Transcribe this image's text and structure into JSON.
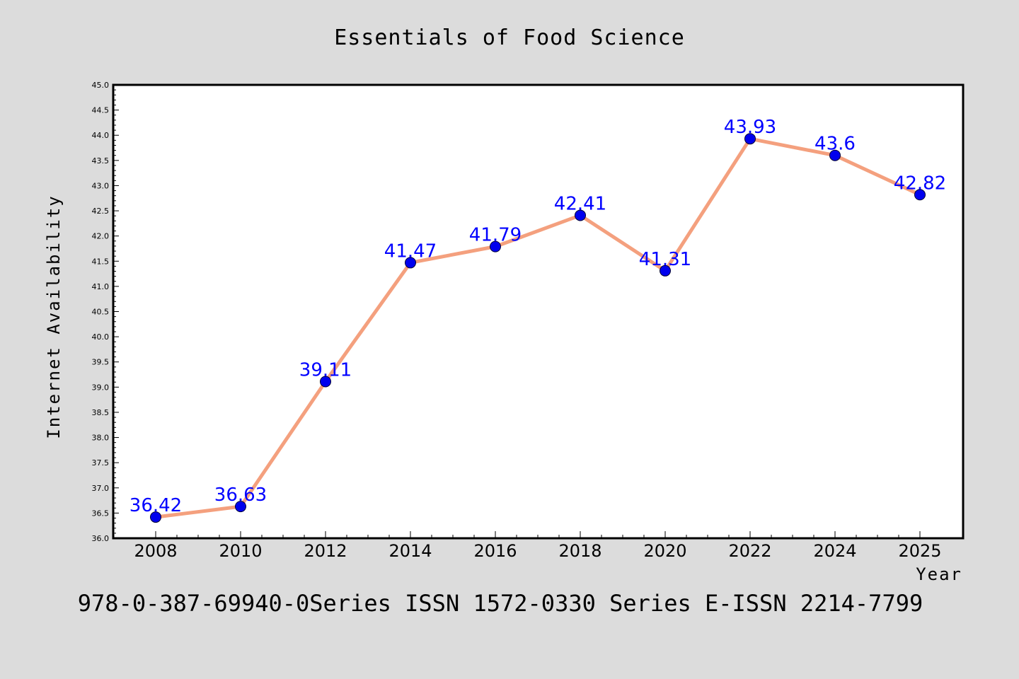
{
  "chart_data": {
    "type": "line",
    "title": "Essentials of Food Science",
    "xlabel": "Year",
    "ylabel": "Internet Availability",
    "x": [
      "2008",
      "2010",
      "2012",
      "2014",
      "2016",
      "2018",
      "2020",
      "2022",
      "2024",
      "2025"
    ],
    "series": [
      {
        "values": [
          36.42,
          36.63,
          39.11,
          41.47,
          41.79,
          42.41,
          41.31,
          43.93,
          43.6,
          42.82
        ],
        "labels": [
          "36.42",
          "36.63",
          "39.11",
          "41.47",
          "41.79",
          "42.41",
          "41.31",
          "43.93",
          "43.6",
          "42.82"
        ],
        "line_color": "#f4a07e",
        "marker_color": "#0000ee",
        "label_color": "#0000ff"
      }
    ],
    "ylim": [
      36.0,
      45.0
    ],
    "y_ticks": [
      "36.0",
      "36.5",
      "37.0",
      "37.5",
      "38.0",
      "38.5",
      "39.0",
      "39.5",
      "40.0",
      "40.5",
      "41.0",
      "41.5",
      "42.0",
      "42.5",
      "43.0",
      "43.5",
      "44.0",
      "44.5",
      "45.0"
    ],
    "grid": false,
    "legend": "none",
    "footer": "978-0-387-69940-0Series ISSN 1572-0330 Series E-ISSN 2214-7799"
  },
  "colors": {
    "background": "#dcdcdc",
    "plot_background": "#ffffff"
  }
}
